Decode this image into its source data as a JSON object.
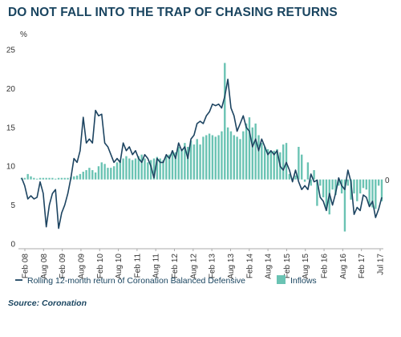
{
  "title": "DO NOT FALL INTO THE TRAP OF CHASING RETURNS",
  "source": "Source: Coronation",
  "colors": {
    "line": "#1d4461",
    "bars": "#6ac3b3",
    "axis": "#aaaaaa",
    "text": "#333333",
    "title": "#1a4560"
  },
  "chart_data": {
    "type": "line",
    "title": "DO NOT FALL INTO THE TRAP OF CHASING RETURNS",
    "ylabel": "%",
    "xlabel": "",
    "ylim": [
      0,
      25
    ],
    "yticks": [
      "0",
      "5",
      "10",
      "15",
      "20",
      "25"
    ],
    "right_label": "0",
    "inflows_zero_level": 8.3,
    "x_tick_labels": [
      "Feb 08",
      "Aug 08",
      "Feb 09",
      "Aug 09",
      "Feb 10",
      "Aug 10",
      "Feb 11",
      "Aug 11",
      "Feb 12",
      "Aug 12",
      "Feb 13",
      "Aug 13",
      "Feb 14",
      "Aug 14",
      "Feb 15",
      "Aug 15",
      "Feb 16",
      "Aug 16",
      "Feb 17",
      "Jul 17"
    ],
    "grid": false,
    "legend_position": "bottom",
    "series": [
      {
        "name": "Rolling 12-month return of Coronation Balanced Defensive",
        "type": "line",
        "values": [
          8.5,
          7.5,
          5.8,
          6.2,
          5.8,
          6.0,
          8.0,
          6.5,
          2.2,
          5.0,
          6.5,
          7.0,
          2.0,
          4.0,
          5.0,
          6.5,
          8.5,
          11.0,
          10.5,
          12.0,
          16.3,
          13.0,
          13.5,
          13.0,
          17.2,
          16.5,
          16.7,
          13.0,
          12.5,
          11.5,
          10.5,
          11.0,
          10.5,
          13.0,
          12.0,
          12.5,
          11.5,
          12.0,
          11.0,
          10.5,
          11.5,
          11.0,
          10.0,
          8.5,
          11.0,
          10.5,
          10.5,
          11.5,
          11.0,
          12.0,
          11.0,
          13.0,
          12.0,
          12.5,
          11.0,
          13.5,
          14.0,
          15.5,
          15.8,
          15.5,
          16.5,
          17.0,
          18.0,
          17.8,
          18.0,
          17.5,
          19.0,
          21.2,
          17.5,
          16.5,
          14.5,
          15.5,
          16.5,
          15.0,
          14.5,
          12.5,
          13.5,
          12.0,
          13.5,
          12.5,
          11.5,
          12.0,
          11.5,
          12.0,
          10.0,
          9.5,
          10.5,
          9.5,
          8.0,
          9.5,
          8.0,
          7.0,
          7.5,
          7.0,
          9.0,
          8.0,
          8.2,
          6.0,
          5.5,
          4.3,
          6.5,
          5.0,
          6.5,
          8.5,
          7.5,
          7.0,
          9.5,
          8.0,
          3.8,
          4.7,
          4.3,
          6.3,
          6.0,
          4.8,
          5.5,
          3.4,
          4.5,
          6.0
        ]
      },
      {
        "name": "Inflows",
        "type": "bar",
        "values": [
          8.5,
          8.5,
          9.0,
          8.7,
          8.5,
          8.4,
          8.5,
          8.5,
          8.5,
          8.5,
          8.5,
          8.4,
          8.5,
          8.5,
          8.5,
          8.5,
          8.6,
          8.7,
          8.8,
          9.0,
          9.3,
          9.5,
          9.8,
          9.5,
          9.2,
          10.0,
          10.5,
          10.3,
          9.8,
          9.8,
          10.0,
          10.5,
          10.8,
          11.0,
          11.3,
          11.0,
          10.8,
          11.0,
          11.3,
          11.5,
          11.0,
          10.5,
          10.8,
          11.0,
          11.2,
          11.0,
          10.8,
          11.3,
          11.5,
          12.0,
          11.8,
          12.5,
          12.2,
          13.0,
          12.5,
          13.3,
          12.8,
          13.5,
          12.8,
          13.8,
          14.0,
          14.2,
          14.0,
          13.8,
          14.0,
          14.5,
          23.3,
          15.0,
          14.5,
          14.0,
          13.8,
          13.5,
          14.5,
          15.5,
          16.3,
          15.0,
          15.5,
          14.0,
          13.0,
          12.5,
          12.2,
          12.0,
          12.0,
          12.2,
          11.8,
          12.8,
          13.0,
          9.0,
          8.5,
          8.8,
          12.5,
          11.5,
          8.0,
          10.5,
          7.5,
          9.5,
          4.9,
          7.5,
          6.0,
          4.3,
          3.8,
          7.0,
          6.3,
          7.5,
          6.5,
          1.6,
          7.5,
          5.7,
          6.5,
          5.5,
          6.5,
          7.2,
          7.0,
          5.0,
          4.7,
          4.5,
          7.5,
          5.5
        ]
      }
    ]
  },
  "legend": {
    "line_label": "Rolling 12-month return of Coronation Balanced Defensive",
    "bar_label": "Inflows"
  }
}
